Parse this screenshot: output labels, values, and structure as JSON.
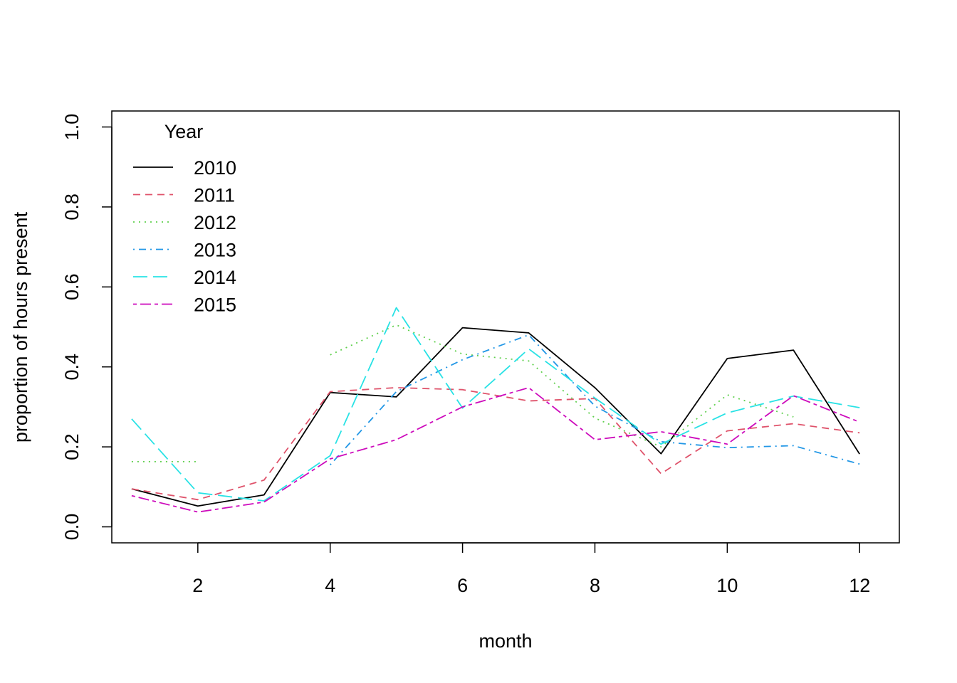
{
  "chart_data": {
    "type": "line",
    "xlabel": "month",
    "ylabel": "proportion of hours present",
    "xlim": [
      0.7,
      12.6
    ],
    "ylim": [
      -0.04,
      1.04
    ],
    "x_ticks": [
      2,
      4,
      6,
      8,
      10,
      12
    ],
    "y_ticks": [
      0.0,
      0.2,
      0.4,
      0.6,
      0.8,
      1.0
    ],
    "y_tick_labels": [
      "0.0",
      "0.2",
      "0.4",
      "0.6",
      "0.8",
      "1.0"
    ],
    "legend": {
      "title": "Year",
      "position": "top-left"
    },
    "series": [
      {
        "name": "2010",
        "color": "#000000",
        "dash": "solid",
        "x": [
          1,
          2,
          3,
          4,
          5,
          6,
          7,
          8,
          9,
          10,
          11,
          12
        ],
        "values": [
          0.095,
          0.052,
          0.08,
          0.336,
          0.325,
          0.498,
          0.485,
          0.348,
          0.183,
          0.421,
          0.442,
          0.182
        ]
      },
      {
        "name": "2011",
        "color": "#DF536B",
        "dash": "dashed",
        "x": [
          1,
          2,
          3,
          4,
          5,
          6,
          7,
          8,
          9,
          10,
          11,
          12
        ],
        "values": [
          0.095,
          0.068,
          0.117,
          0.338,
          0.348,
          0.343,
          0.315,
          0.321,
          0.133,
          0.24,
          0.258,
          0.235
        ]
      },
      {
        "name": "2012",
        "color": "#61D04F",
        "dash": "dotted",
        "x": [
          1,
          2,
          4,
          5,
          6,
          7,
          8,
          9,
          10,
          11
        ],
        "values": [
          0.163,
          0.163,
          0.43,
          0.505,
          0.432,
          0.415,
          0.272,
          0.2,
          0.33,
          0.275
        ],
        "segments": [
          [
            0,
            1
          ],
          [
            2,
            9
          ]
        ]
      },
      {
        "name": "2013",
        "color": "#2297E6",
        "dash": "dotdash",
        "x": [
          4,
          5,
          6,
          7,
          8,
          9,
          10,
          11,
          12
        ],
        "values": [
          0.155,
          0.338,
          0.418,
          0.48,
          0.302,
          0.213,
          0.198,
          0.203,
          0.157
        ]
      },
      {
        "name": "2014",
        "color": "#28E2E5",
        "dash": "longdash",
        "x": [
          1,
          2,
          3,
          4,
          5,
          6,
          7,
          8,
          9,
          10,
          11,
          12
        ],
        "values": [
          0.27,
          0.085,
          0.065,
          0.178,
          0.548,
          0.297,
          0.445,
          0.322,
          0.207,
          0.285,
          0.327,
          0.298
        ]
      },
      {
        "name": "2015",
        "color": "#CD0BBC",
        "dash": "twodash",
        "x": [
          1,
          2,
          3,
          4,
          5,
          6,
          7,
          8,
          9,
          10,
          11,
          12
        ],
        "values": [
          0.078,
          0.037,
          0.062,
          0.17,
          0.218,
          0.3,
          0.348,
          0.218,
          0.238,
          0.207,
          0.328,
          0.262
        ]
      }
    ]
  }
}
